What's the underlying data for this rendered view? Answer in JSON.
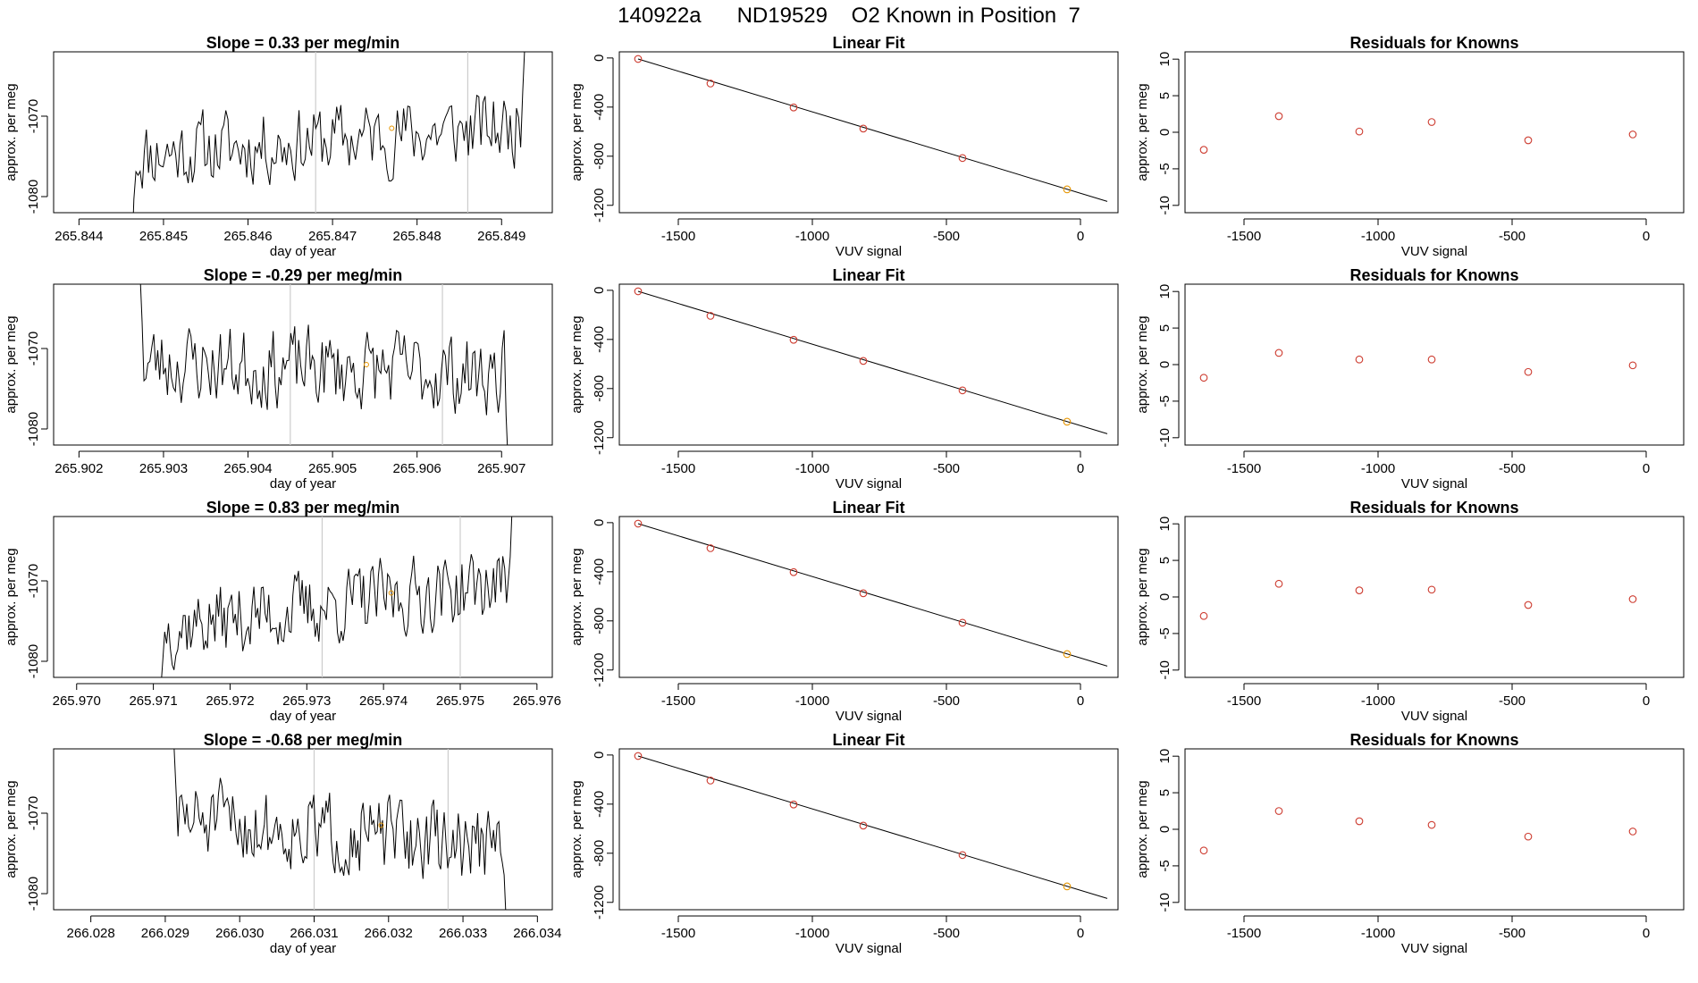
{
  "page_title": "140922a      ND19529    O2 Known in Position  7",
  "colors": {
    "axis": "#000000",
    "grid": "#cccccc",
    "trace": "#000000",
    "point": "#cd3b2f",
    "highlight": "#e69500"
  },
  "chart_data": [
    {
      "id": "r1-series",
      "type": "line",
      "title": "Slope =  0.33  per meg/min",
      "xlabel": "day of year",
      "ylabel": "approx. per meg",
      "xlim": [
        265.8437,
        265.8496
      ],
      "ylim": [
        -1082,
        -1062
      ],
      "xticks": [
        265.844,
        265.845,
        265.846,
        265.847,
        265.848,
        265.849
      ],
      "xtick_labels": [
        "265.844",
        "265.845",
        "265.846",
        "265.847",
        "265.848",
        "265.849"
      ],
      "yticks": [
        -1070,
        -1080
      ],
      "ytick_labels": [
        "-1070",
        "-1080"
      ],
      "vlines": [
        265.8468,
        265.8486
      ],
      "marker": {
        "x": 265.8477,
        "y": -1071.5
      },
      "seed": 11,
      "x_start": 265.8446,
      "x_end": 265.8493,
      "mean": -1073,
      "trend": 0.9,
      "amp": 2.6,
      "lead_in": -1095,
      "lead_out": -1055
    },
    {
      "id": "r1-fit",
      "type": "scatter",
      "title": "Linear Fit",
      "xlabel": "VUV signal",
      "ylabel": "approx. per meg",
      "xlim": [
        -1720,
        140
      ],
      "ylim": [
        -1260,
        50
      ],
      "xticks": [
        -1500,
        -1000,
        -500,
        0
      ],
      "xtick_labels": [
        "-1500",
        "-1000",
        "-500",
        "0"
      ],
      "yticks": [
        0,
        -400,
        -800,
        -1200
      ],
      "ytick_labels": [
        "0",
        "-400",
        "-800",
        "-1200"
      ],
      "points": {
        "x": [
          -1650,
          -1380,
          -1070,
          -810,
          -440,
          -50
        ],
        "y": [
          -8,
          -208,
          -403,
          -575,
          -815,
          -1070
        ]
      },
      "highlight_index": 5,
      "fit_line": {
        "x": [
          -1650,
          100
        ],
        "y": [
          -8,
          -1168
        ]
      }
    },
    {
      "id": "r1-resid",
      "type": "scatter",
      "title": "Residuals for Knowns",
      "xlabel": "VUV signal",
      "ylabel": "approx. per meg",
      "xlim": [
        -1720,
        140
      ],
      "ylim": [
        -11,
        11
      ],
      "xticks": [
        -1500,
        -1000,
        -500,
        0
      ],
      "xtick_labels": [
        "-1500",
        "-1000",
        "-500",
        "0"
      ],
      "yticks": [
        10,
        5,
        0,
        -5,
        -10
      ],
      "ytick_labels": [
        "10",
        "5",
        "0",
        "-5",
        "-10"
      ],
      "points": {
        "x": [
          -1650,
          -1370,
          -1070,
          -800,
          -440,
          -50
        ],
        "y": [
          -2.4,
          2.2,
          0.1,
          1.4,
          -1.1,
          -0.3
        ]
      }
    },
    {
      "id": "r2-series",
      "type": "line",
      "title": "Slope =  -0.29  per meg/min",
      "xlabel": "day of year",
      "ylabel": "approx. per meg",
      "xlim": [
        265.9017,
        265.9076
      ],
      "ylim": [
        -1082,
        -1062
      ],
      "xticks": [
        265.902,
        265.903,
        265.904,
        265.905,
        265.906,
        265.907
      ],
      "xtick_labels": [
        "265.902",
        "265.903",
        "265.904",
        "265.905",
        "265.906",
        "265.907"
      ],
      "yticks": [
        -1070,
        -1080
      ],
      "ytick_labels": [
        "-1070",
        "-1080"
      ],
      "vlines": [
        265.9045,
        265.9063
      ],
      "marker": {
        "x": 265.9054,
        "y": -1072
      },
      "seed": 23,
      "x_start": 265.9027,
      "x_end": 265.9071,
      "mean": -1072.5,
      "trend": -0.4,
      "amp": 2.8,
      "lead_in": -1055,
      "lead_out": -1090
    },
    {
      "id": "r2-fit",
      "type": "scatter",
      "title": "Linear Fit",
      "xlabel": "VUV signal",
      "ylabel": "approx. per meg",
      "xlim": [
        -1720,
        140
      ],
      "ylim": [
        -1260,
        50
      ],
      "xticks": [
        -1500,
        -1000,
        -500,
        0
      ],
      "xtick_labels": [
        "-1500",
        "-1000",
        "-500",
        "0"
      ],
      "yticks": [
        0,
        -400,
        -800,
        -1200
      ],
      "ytick_labels": [
        "0",
        "-400",
        "-800",
        "-1200"
      ],
      "points": {
        "x": [
          -1650,
          -1380,
          -1070,
          -810,
          -440,
          -50
        ],
        "y": [
          -8,
          -208,
          -403,
          -575,
          -815,
          -1070
        ]
      },
      "highlight_index": 5,
      "fit_line": {
        "x": [
          -1650,
          100
        ],
        "y": [
          -8,
          -1168
        ]
      }
    },
    {
      "id": "r2-resid",
      "type": "scatter",
      "title": "Residuals for Knowns",
      "xlabel": "VUV signal",
      "ylabel": "approx. per meg",
      "xlim": [
        -1720,
        140
      ],
      "ylim": [
        -11,
        11
      ],
      "xticks": [
        -1500,
        -1000,
        -500,
        0
      ],
      "xtick_labels": [
        "-1500",
        "-1000",
        "-500",
        "0"
      ],
      "yticks": [
        10,
        5,
        0,
        -5,
        -10
      ],
      "ytick_labels": [
        "10",
        "5",
        "0",
        "-5",
        "-10"
      ],
      "points": {
        "x": [
          -1650,
          -1370,
          -1070,
          -800,
          -440,
          -50
        ],
        "y": [
          -1.8,
          1.6,
          0.7,
          0.7,
          -1.0,
          -0.1
        ]
      }
    },
    {
      "id": "r3-series",
      "type": "line",
      "title": "Slope =  0.83  per meg/min",
      "xlabel": "day of year",
      "ylabel": "approx. per meg",
      "xlim": [
        265.9697,
        265.9762
      ],
      "ylim": [
        -1082,
        -1062
      ],
      "xticks": [
        265.97,
        265.971,
        265.972,
        265.973,
        265.974,
        265.975,
        265.976
      ],
      "xtick_labels": [
        "265.970",
        "265.971",
        "265.972",
        "265.973",
        "265.974",
        "265.975",
        "265.976"
      ],
      "yticks": [
        -1070,
        -1080
      ],
      "ytick_labels": [
        "-1070",
        "-1080"
      ],
      "vlines": [
        265.9732,
        265.975
      ],
      "marker": {
        "x": 265.9741,
        "y": -1071.5
      },
      "seed": 37,
      "x_start": 265.9711,
      "x_end": 265.9757,
      "mean": -1073,
      "trend": 1.4,
      "amp": 2.6,
      "lead_in": -1083,
      "lead_out": -1055
    },
    {
      "id": "r3-fit",
      "type": "scatter",
      "title": "Linear Fit",
      "xlabel": "VUV signal",
      "ylabel": "approx. per meg",
      "xlim": [
        -1720,
        140
      ],
      "ylim": [
        -1260,
        50
      ],
      "xticks": [
        -1500,
        -1000,
        -500,
        0
      ],
      "xtick_labels": [
        "-1500",
        "-1000",
        "-500",
        "0"
      ],
      "yticks": [
        0,
        -400,
        -800,
        -1200
      ],
      "ytick_labels": [
        "0",
        "-400",
        "-800",
        "-1200"
      ],
      "points": {
        "x": [
          -1650,
          -1380,
          -1070,
          -810,
          -440,
          -50
        ],
        "y": [
          -8,
          -208,
          -403,
          -575,
          -815,
          -1070
        ]
      },
      "highlight_index": 5,
      "fit_line": {
        "x": [
          -1650,
          100
        ],
        "y": [
          -8,
          -1168
        ]
      }
    },
    {
      "id": "r3-resid",
      "type": "scatter",
      "title": "Residuals for Knowns",
      "xlabel": "VUV signal",
      "ylabel": "approx. per meg",
      "xlim": [
        -1720,
        140
      ],
      "ylim": [
        -11,
        11
      ],
      "xticks": [
        -1500,
        -1000,
        -500,
        0
      ],
      "xtick_labels": [
        "-1500",
        "-1000",
        "-500",
        "0"
      ],
      "yticks": [
        10,
        5,
        0,
        -5,
        -10
      ],
      "ytick_labels": [
        "10",
        "5",
        "0",
        "-5",
        "-10"
      ],
      "points": {
        "x": [
          -1650,
          -1370,
          -1070,
          -800,
          -440,
          -50
        ],
        "y": [
          -2.6,
          1.8,
          0.9,
          1.0,
          -1.1,
          -0.3
        ]
      }
    },
    {
      "id": "r4-series",
      "type": "line",
      "title": "Slope =  -0.68  per meg/min",
      "xlabel": "day of year",
      "ylabel": "approx. per meg",
      "xlim": [
        266.0275,
        266.0342
      ],
      "ylim": [
        -1082,
        -1062
      ],
      "xticks": [
        266.028,
        266.029,
        266.03,
        266.031,
        266.032,
        266.033,
        266.034
      ],
      "xtick_labels": [
        "266.028",
        "266.029",
        "266.030",
        "266.031",
        "266.032",
        "266.033",
        "266.034"
      ],
      "yticks": [
        -1070,
        -1080
      ],
      "ytick_labels": [
        "-1070",
        "-1080"
      ],
      "vlines": [
        266.031,
        266.0328
      ],
      "marker": {
        "x": 266.0319,
        "y": -1071.5
      },
      "seed": 51,
      "x_start": 266.0291,
      "x_end": 266.0336,
      "mean": -1072.5,
      "trend": -0.9,
      "amp": 2.7,
      "lead_in": -1058,
      "lead_out": -1088
    },
    {
      "id": "r4-fit",
      "type": "scatter",
      "title": "Linear Fit",
      "xlabel": "VUV signal",
      "ylabel": "approx. per meg",
      "xlim": [
        -1720,
        140
      ],
      "ylim": [
        -1260,
        50
      ],
      "xticks": [
        -1500,
        -1000,
        -500,
        0
      ],
      "xtick_labels": [
        "-1500",
        "-1000",
        "-500",
        "0"
      ],
      "yticks": [
        0,
        -400,
        -800,
        -1200
      ],
      "ytick_labels": [
        "0",
        "-400",
        "-800",
        "-1200"
      ],
      "points": {
        "x": [
          -1650,
          -1380,
          -1070,
          -810,
          -440,
          -50
        ],
        "y": [
          -8,
          -208,
          -403,
          -575,
          -815,
          -1070
        ]
      },
      "highlight_index": 5,
      "fit_line": {
        "x": [
          -1650,
          100
        ],
        "y": [
          -8,
          -1168
        ]
      }
    },
    {
      "id": "r4-resid",
      "type": "scatter",
      "title": "Residuals for Knowns",
      "xlabel": "VUV signal",
      "ylabel": "approx. per meg",
      "xlim": [
        -1720,
        140
      ],
      "ylim": [
        -11,
        11
      ],
      "xticks": [
        -1500,
        -1000,
        -500,
        0
      ],
      "xtick_labels": [
        "-1500",
        "-1000",
        "-500",
        "0"
      ],
      "yticks": [
        10,
        5,
        0,
        -5,
        -10
      ],
      "ytick_labels": [
        "10",
        "5",
        "0",
        "-5",
        "-10"
      ],
      "points": {
        "x": [
          -1650,
          -1370,
          -1070,
          -800,
          -440,
          -50
        ],
        "y": [
          -2.9,
          2.5,
          1.1,
          0.6,
          -1.0,
          -0.3
        ]
      }
    }
  ]
}
